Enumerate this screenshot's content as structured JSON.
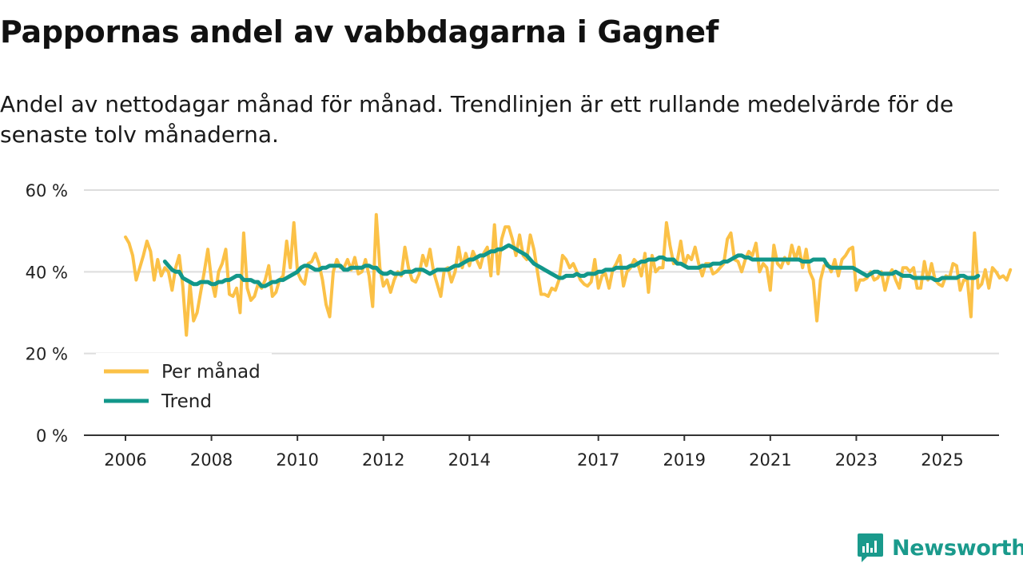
{
  "title": "Pappornas andel av vabbdagarna i Gagnef",
  "subtitle": "Andel av nettodagar månad för månad. Trendlinjen är ett rullande medelvärde för de senaste tolv månaderna.",
  "brand": {
    "name": "Newsworthy",
    "icon": "newsworthy-logo-icon",
    "color": "#1a9a8c"
  },
  "chart_data": {
    "type": "line",
    "title": "Pappornas andel av vabbdagarna i Gagnef",
    "xlabel": "",
    "ylabel": "",
    "ylim": [
      0,
      60
    ],
    "xlim": [
      2006,
      2026.35
    ],
    "yticks": [
      0,
      20,
      40,
      60
    ],
    "ytick_labels": [
      "0 %",
      "20 %",
      "40 %",
      "60 %"
    ],
    "xticks": [
      2006,
      2008,
      2010,
      2012,
      2014,
      2017,
      2019,
      2021,
      2023,
      2025
    ],
    "xtick_labels": [
      "2006",
      "2008",
      "2010",
      "2012",
      "2014",
      "2017",
      "2019",
      "2021",
      "2023",
      "2025"
    ],
    "grid": true,
    "legend_position": "bottom-left",
    "series": [
      {
        "name": "Per månad",
        "color": "#fbc147",
        "x_start": 2006.0,
        "step": 0.0833333,
        "values": [
          48.5,
          47,
          44,
          38,
          41,
          44,
          47.5,
          45,
          38,
          43,
          39,
          41,
          40,
          35.5,
          41,
          44,
          36.5,
          24.5,
          37,
          28,
          30,
          35,
          40,
          45.5,
          38,
          34,
          40,
          42,
          45.5,
          34.5,
          34,
          36,
          30,
          49.5,
          36,
          33,
          34,
          37,
          36,
          38,
          41.5,
          34,
          35,
          38,
          39,
          47.5,
          41,
          52,
          40,
          38,
          37,
          42,
          42.5,
          44.5,
          42,
          38,
          32,
          29,
          40,
          43,
          41,
          41,
          43,
          40.5,
          43.5,
          39.5,
          40,
          43,
          39,
          31.5,
          54,
          41,
          36.5,
          38,
          35,
          38,
          40,
          39,
          46,
          41,
          38,
          37.5,
          39.5,
          44,
          41.5,
          45.5,
          40,
          37,
          34,
          40.5,
          41,
          37.5,
          40,
          46,
          41,
          44.5,
          41.5,
          45,
          43,
          41,
          44.5,
          46,
          39,
          51.5,
          39.5,
          48,
          51,
          51,
          48,
          44,
          49,
          44,
          43,
          49,
          45.5,
          40,
          34.5,
          34.5,
          34,
          36,
          35.5,
          38,
          44,
          43,
          41,
          42,
          40,
          38,
          37,
          36.5,
          37.5,
          43,
          36,
          39,
          39.5,
          36,
          40.5,
          42,
          44,
          36.5,
          40,
          41,
          43,
          42,
          39,
          44.5,
          35,
          44,
          40,
          41,
          41,
          52,
          46.5,
          42,
          42.5,
          47.5,
          41.5,
          44,
          43,
          46,
          42,
          39,
          42,
          42,
          39.5,
          40,
          41,
          42,
          48,
          49.5,
          43,
          42.5,
          40,
          43,
          45,
          44,
          47,
          40,
          42,
          41,
          35.5,
          46.5,
          42,
          41,
          43.5,
          42,
          46.5,
          43,
          46,
          41,
          45.5,
          40,
          38,
          28,
          38,
          41.5,
          42,
          40,
          43,
          39,
          43,
          44,
          45.5,
          46,
          35.5,
          38,
          38,
          38.5,
          40,
          38,
          38.5,
          40,
          35.5,
          39,
          40.5,
          38,
          36,
          41,
          41,
          40,
          41,
          36,
          36,
          42.5,
          38,
          42,
          38,
          37,
          36.5,
          39,
          38.5,
          42,
          41.5,
          35.5,
          38,
          38,
          29,
          49.5,
          36,
          37,
          40.5,
          36,
          41,
          40,
          38.5,
          39,
          38,
          40.5
        ]
      },
      {
        "name": "Trend",
        "color": "#12978a",
        "x_start": 2006.9167,
        "step": 0.0833333,
        "values": [
          42.5,
          41.5,
          40.5,
          40,
          40,
          38.5,
          38,
          37.5,
          37,
          37,
          37.5,
          37.5,
          37.5,
          37,
          37,
          37.5,
          37.5,
          38,
          38,
          38.5,
          39,
          39,
          38,
          38,
          38,
          37.5,
          37.5,
          36.5,
          36.5,
          37,
          37.5,
          37.5,
          38,
          38,
          38.5,
          39,
          39.5,
          40,
          41,
          41.5,
          41.5,
          41,
          40.5,
          40.5,
          41,
          41,
          41.5,
          41.5,
          41.5,
          41.5,
          40.5,
          40.5,
          41,
          41,
          41,
          41,
          41.5,
          41.5,
          41,
          41,
          40,
          39.5,
          39.5,
          40,
          39.5,
          39.5,
          39.5,
          40,
          40,
          40,
          40.5,
          40.5,
          40.5,
          40,
          39.5,
          40,
          40.5,
          40.5,
          40.5,
          40.5,
          41,
          41.5,
          41.5,
          42,
          42.5,
          43,
          43,
          43.5,
          44,
          44,
          44.5,
          45,
          45,
          45.5,
          45.5,
          46,
          46.5,
          46,
          45.5,
          45,
          44.5,
          44,
          43,
          42,
          41.5,
          41,
          40.5,
          40,
          39.5,
          39,
          38.5,
          38.5,
          39,
          39,
          39,
          39.5,
          39,
          39,
          39.5,
          39.5,
          39.5,
          40,
          40,
          40.5,
          40.5,
          40.5,
          41,
          41,
          41,
          41,
          41.5,
          41.5,
          42,
          42.5,
          42.5,
          43,
          43,
          43,
          43.5,
          43.5,
          43,
          43,
          43,
          42,
          42,
          41.5,
          41,
          41,
          41,
          41,
          41.5,
          41.5,
          41.5,
          42,
          42,
          42,
          42.5,
          42.5,
          43,
          43.5,
          44,
          44,
          43.5,
          43.5,
          43,
          43,
          43,
          43,
          43,
          43,
          43,
          43,
          43,
          43,
          43,
          43,
          43,
          43,
          42.5,
          42.5,
          42.5,
          43,
          43,
          43,
          43,
          41.5,
          41,
          41,
          41,
          41,
          41,
          41,
          41,
          40.5,
          40,
          39.5,
          39,
          39.5,
          40,
          40,
          39.5,
          39.5,
          39.5,
          39.5,
          40,
          39.5,
          39,
          39,
          39,
          38.5,
          38.5,
          38.5,
          38.5,
          38.5,
          38.5,
          38,
          38,
          38.5,
          38.5,
          38.5,
          38.5,
          38.5,
          39,
          39,
          38.5,
          38.5,
          38.5,
          39
        ]
      }
    ]
  }
}
